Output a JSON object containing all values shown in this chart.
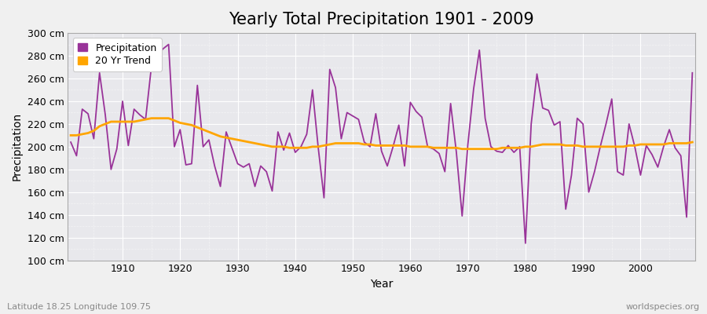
{
  "title": "Yearly Total Precipitation 1901 - 2009",
  "xlabel": "Year",
  "ylabel": "Precipitation",
  "subtitle_left": "Latitude 18.25 Longitude 109.75",
  "subtitle_right": "worldspecies.org",
  "years": [
    1901,
    1902,
    1903,
    1904,
    1905,
    1906,
    1907,
    1908,
    1909,
    1910,
    1911,
    1912,
    1913,
    1914,
    1915,
    1916,
    1917,
    1918,
    1919,
    1920,
    1921,
    1922,
    1923,
    1924,
    1925,
    1926,
    1927,
    1928,
    1929,
    1930,
    1931,
    1932,
    1933,
    1934,
    1935,
    1936,
    1937,
    1938,
    1939,
    1940,
    1941,
    1942,
    1943,
    1944,
    1945,
    1946,
    1947,
    1948,
    1949,
    1950,
    1951,
    1952,
    1953,
    1954,
    1955,
    1956,
    1957,
    1958,
    1959,
    1960,
    1961,
    1962,
    1963,
    1964,
    1965,
    1966,
    1967,
    1968,
    1969,
    1970,
    1971,
    1972,
    1973,
    1974,
    1975,
    1976,
    1977,
    1978,
    1979,
    1980,
    1981,
    1982,
    1983,
    1984,
    1985,
    1986,
    1987,
    1988,
    1989,
    1990,
    1991,
    1992,
    1993,
    1994,
    1995,
    1996,
    1997,
    1998,
    1999,
    2000,
    2001,
    2002,
    2003,
    2004,
    2005,
    2006,
    2007,
    2008,
    2009
  ],
  "precip": [
    204,
    192,
    233,
    229,
    207,
    265,
    228,
    180,
    198,
    240,
    201,
    233,
    228,
    224,
    270,
    279,
    286,
    290,
    200,
    215,
    184,
    185,
    254,
    200,
    206,
    183,
    165,
    213,
    199,
    185,
    182,
    185,
    165,
    183,
    178,
    161,
    213,
    197,
    212,
    195,
    200,
    211,
    250,
    199,
    155,
    268,
    252,
    207,
    230,
    227,
    224,
    204,
    200,
    229,
    196,
    183,
    200,
    219,
    183,
    239,
    231,
    226,
    200,
    198,
    194,
    178,
    238,
    195,
    139,
    202,
    251,
    285,
    225,
    200,
    196,
    195,
    201,
    195,
    200,
    115,
    220,
    264,
    234,
    232,
    219,
    222,
    145,
    175,
    225,
    220,
    160,
    178,
    200,
    220,
    242,
    178,
    175,
    220,
    200,
    175,
    201,
    193,
    182,
    200,
    215,
    199,
    192,
    138,
    265
  ],
  "trend": [
    210,
    210,
    211,
    212,
    214,
    218,
    220,
    222,
    222,
    222,
    222,
    222,
    223,
    224,
    225,
    225,
    225,
    225,
    223,
    221,
    220,
    219,
    217,
    215,
    213,
    211,
    209,
    208,
    207,
    206,
    205,
    204,
    203,
    202,
    201,
    200,
    200,
    200,
    199,
    199,
    199,
    199,
    200,
    200,
    201,
    202,
    203,
    203,
    203,
    203,
    203,
    202,
    202,
    201,
    201,
    201,
    201,
    201,
    201,
    200,
    200,
    200,
    200,
    199,
    199,
    199,
    199,
    199,
    198,
    198,
    198,
    198,
    198,
    198,
    198,
    199,
    199,
    199,
    199,
    200,
    200,
    201,
    202,
    202,
    202,
    202,
    201,
    201,
    201,
    200,
    200,
    200,
    200,
    200,
    200,
    200,
    200,
    201,
    201,
    202,
    202,
    202,
    202,
    202,
    203,
    203,
    203,
    203,
    204
  ],
  "precip_color": "#993399",
  "trend_color": "#FFA500",
  "bg_color": "#f0f0f0",
  "plot_bg_color": "#e8e8ec",
  "grid_color": "#ffffff",
  "ylim": [
    100,
    300
  ],
  "yticks": [
    100,
    120,
    140,
    160,
    180,
    200,
    220,
    240,
    260,
    280,
    300
  ],
  "xticks": [
    1910,
    1920,
    1930,
    1940,
    1950,
    1960,
    1970,
    1980,
    1990,
    2000
  ],
  "title_fontsize": 15,
  "axis_label_fontsize": 10,
  "tick_fontsize": 9,
  "legend_fontsize": 9
}
